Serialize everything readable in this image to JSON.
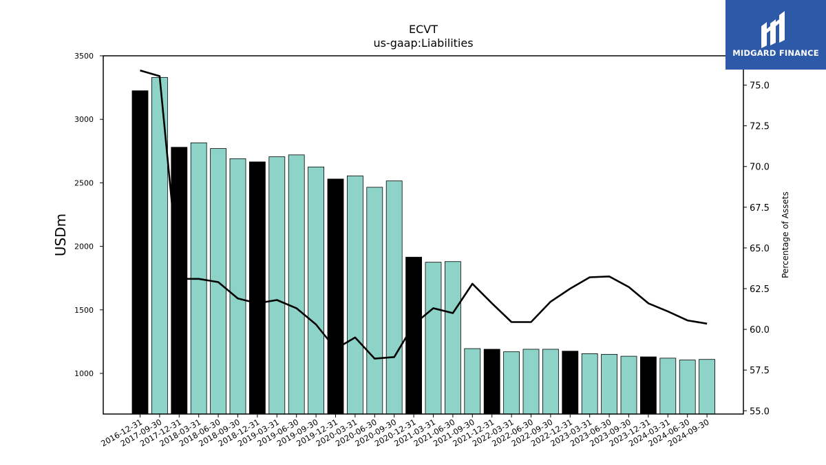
{
  "logo": {
    "text": "MIDGARD FINANCE",
    "background": "#2d5aa8"
  },
  "chart_data": {
    "type": "bar",
    "title": "ECVT",
    "subtitle": "us-gaap:Liabilities",
    "ylabel": "USDm",
    "y2label": "Percentage of Assets",
    "ylim": [
      680,
      3500
    ],
    "y2lim": [
      54.8,
      76.8
    ],
    "yticks": [
      1000,
      1500,
      2000,
      2500,
      3000,
      3500
    ],
    "y2ticks": [
      55.0,
      57.5,
      60.0,
      62.5,
      65.0,
      67.5,
      70.0,
      72.5,
      75.0
    ],
    "colors": {
      "year_end": "#000000",
      "quarter": "#8dd3c7",
      "line": "#000000"
    },
    "categories": [
      "2016-12-31",
      "2017-09-30",
      "2017-12-31",
      "2018-03-31",
      "2018-06-30",
      "2018-09-30",
      "2018-12-31",
      "2019-03-31",
      "2019-06-30",
      "2019-09-30",
      "2019-12-31",
      "2020-03-31",
      "2020-06-30",
      "2020-09-30",
      "2020-12-31",
      "2021-03-31",
      "2021-06-30",
      "2021-09-30",
      "2021-12-31",
      "2022-03-31",
      "2022-06-30",
      "2022-09-30",
      "2022-12-31",
      "2023-03-31",
      "2023-06-30",
      "2023-09-30",
      "2023-12-31",
      "2024-03-31",
      "2024-06-30",
      "2024-09-30"
    ],
    "series": [
      {
        "values": [
          3225,
          3330,
          2780,
          2815,
          2770,
          2690,
          2665,
          2705,
          2720,
          2625,
          2530,
          2555,
          2465,
          2515,
          1915,
          1875,
          1880,
          1195,
          1190,
          1170,
          1190,
          1190,
          1175,
          1155,
          1150,
          1135,
          1130,
          1120,
          1105,
          1110
        ],
        "highlight": [
          true,
          false,
          true,
          false,
          false,
          false,
          true,
          false,
          false,
          false,
          true,
          false,
          false,
          false,
          true,
          false,
          false,
          false,
          true,
          false,
          false,
          false,
          true,
          false,
          false,
          false,
          true,
          false,
          false,
          false
        ]
      },
      {
        "axis": "right",
        "type": "line",
        "values": [
          75.9,
          75.55,
          63.1,
          63.1,
          62.9,
          61.9,
          61.6,
          61.8,
          61.3,
          60.3,
          58.8,
          59.5,
          58.2,
          58.3,
          60.3,
          61.3,
          61.0,
          62.8,
          61.6,
          60.45,
          60.45,
          61.7,
          62.5,
          63.2,
          63.25,
          62.6,
          61.6,
          61.1,
          60.55,
          60.35
        ]
      }
    ]
  }
}
